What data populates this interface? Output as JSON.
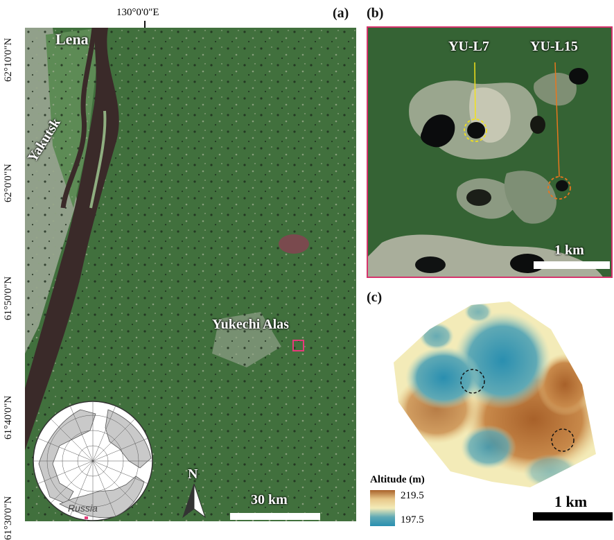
{
  "panel_a": {
    "label": "(a)",
    "lon_label": "130°0'0\"E",
    "lat_labels": [
      "62°10'0\"N",
      "62°0'0\"N",
      "61°50'0\"N",
      "61°40'0\"N",
      "61°30'0\"N"
    ],
    "places": {
      "lena": "Lena",
      "yakutsk": "Yakutsk",
      "yukechi": "Yukechi Alas",
      "russia": "Russia"
    },
    "north": "N",
    "scale": "30 km"
  },
  "panel_b": {
    "label": "(b)",
    "lakes": [
      "YU-L7",
      "YU-L15"
    ],
    "scale": "1 km",
    "colors": {
      "frame": "#d6336c",
      "l7": "#f2e21b",
      "l15": "#e8761e"
    }
  },
  "panel_c": {
    "label": "(c)",
    "legend_title": "Altitude (m)",
    "legend_max": "219.5",
    "legend_min": "197.5",
    "scale": "1 km",
    "colors": {
      "high": "#a8612a",
      "mid": "#f3ebb8",
      "low": "#2a8fb0"
    }
  }
}
